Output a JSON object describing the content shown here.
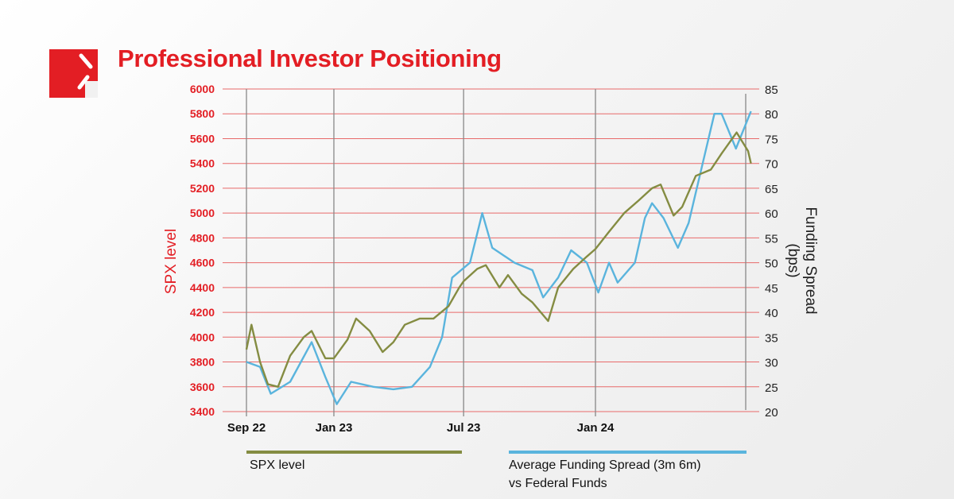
{
  "title": "Professional Investor Positioning",
  "colors": {
    "brand": "#e31e24",
    "spx": "#848c42",
    "funding": "#5ab4dd",
    "grid": "#e86a6a",
    "vline": "#888888"
  },
  "chart_data": {
    "type": "line",
    "title": "Professional Investor Positioning",
    "x_ticks": [
      {
        "date": "2022-09-01",
        "label": "Sep 22"
      },
      {
        "date": "2023-01-01",
        "label": "Jan 23"
      },
      {
        "date": "2023-07-01",
        "label": "Jul 23"
      },
      {
        "date": "2024-01-01",
        "label": "Jan 24"
      }
    ],
    "xlim": [
      "2022-08-25",
      "2024-08-07"
    ],
    "y_left": {
      "label": "SPX level",
      "lim": [
        3400,
        6000
      ],
      "ticks": [
        3400,
        3600,
        3800,
        4000,
        4200,
        4400,
        4600,
        4800,
        5000,
        5200,
        5400,
        5600,
        5800,
        6000
      ]
    },
    "y_right": {
      "label": "Funding Spread (bps)",
      "lim": [
        20,
        85
      ],
      "ticks": [
        20,
        25,
        30,
        35,
        40,
        45,
        50,
        55,
        60,
        65,
        70,
        75,
        80,
        85
      ]
    },
    "grid": "horizontal",
    "legend_position": "bottom",
    "series": [
      {
        "name": "SPX level",
        "axis": "left",
        "points": [
          [
            "2022-09-01",
            3900
          ],
          [
            "2022-09-08",
            4100
          ],
          [
            "2022-09-20",
            3800
          ],
          [
            "2022-10-01",
            3620
          ],
          [
            "2022-10-15",
            3600
          ],
          [
            "2022-11-01",
            3850
          ],
          [
            "2022-11-20",
            4000
          ],
          [
            "2022-12-01",
            4050
          ],
          [
            "2022-12-20",
            3830
          ],
          [
            "2023-01-01",
            3830
          ],
          [
            "2023-01-20",
            3980
          ],
          [
            "2023-02-01",
            4150
          ],
          [
            "2023-02-20",
            4050
          ],
          [
            "2023-03-10",
            3880
          ],
          [
            "2023-03-25",
            3960
          ],
          [
            "2023-04-10",
            4100
          ],
          [
            "2023-05-01",
            4150
          ],
          [
            "2023-05-20",
            4150
          ],
          [
            "2023-06-10",
            4250
          ],
          [
            "2023-06-25",
            4400
          ],
          [
            "2023-07-01",
            4450
          ],
          [
            "2023-07-20",
            4550
          ],
          [
            "2023-08-01",
            4580
          ],
          [
            "2023-08-20",
            4400
          ],
          [
            "2023-09-01",
            4500
          ],
          [
            "2023-09-20",
            4350
          ],
          [
            "2023-10-05",
            4280
          ],
          [
            "2023-10-27",
            4130
          ],
          [
            "2023-11-10",
            4400
          ],
          [
            "2023-12-01",
            4550
          ],
          [
            "2023-12-20",
            4650
          ],
          [
            "2024-01-01",
            4710
          ],
          [
            "2024-01-20",
            4850
          ],
          [
            "2024-02-10",
            5000
          ],
          [
            "2024-03-01",
            5100
          ],
          [
            "2024-03-20",
            5200
          ],
          [
            "2024-04-01",
            5230
          ],
          [
            "2024-04-19",
            4980
          ],
          [
            "2024-05-01",
            5050
          ],
          [
            "2024-05-20",
            5300
          ],
          [
            "2024-06-10",
            5350
          ],
          [
            "2024-06-25",
            5480
          ],
          [
            "2024-07-16",
            5650
          ],
          [
            "2024-08-01",
            5500
          ],
          [
            "2024-08-05",
            5400
          ]
        ]
      },
      {
        "name": "Average Funding Spread (3m 6m) vs Federal Funds",
        "axis": "right",
        "points": [
          [
            "2022-09-01",
            30
          ],
          [
            "2022-09-20",
            29
          ],
          [
            "2022-10-05",
            23.6
          ],
          [
            "2022-11-01",
            26
          ],
          [
            "2022-12-01",
            34
          ],
          [
            "2022-12-20",
            27
          ],
          [
            "2023-01-05",
            21.5
          ],
          [
            "2023-01-25",
            26
          ],
          [
            "2023-02-25",
            25
          ],
          [
            "2023-03-25",
            24.5
          ],
          [
            "2023-04-20",
            25
          ],
          [
            "2023-05-15",
            29
          ],
          [
            "2023-06-01",
            35
          ],
          [
            "2023-06-15",
            47
          ],
          [
            "2023-07-10",
            50
          ],
          [
            "2023-07-27",
            60
          ],
          [
            "2023-08-10",
            53
          ],
          [
            "2023-09-10",
            50
          ],
          [
            "2023-10-05",
            48.5
          ],
          [
            "2023-10-20",
            43
          ],
          [
            "2023-11-10",
            47
          ],
          [
            "2023-11-28",
            52.5
          ],
          [
            "2023-12-20",
            50
          ],
          [
            "2024-01-05",
            44
          ],
          [
            "2024-01-20",
            50
          ],
          [
            "2024-02-01",
            46
          ],
          [
            "2024-02-25",
            50
          ],
          [
            "2024-03-10",
            59
          ],
          [
            "2024-03-20",
            62
          ],
          [
            "2024-04-05",
            59
          ],
          [
            "2024-04-25",
            53
          ],
          [
            "2024-05-10",
            58
          ],
          [
            "2024-05-28",
            69
          ],
          [
            "2024-06-15",
            80
          ],
          [
            "2024-06-25",
            80
          ],
          [
            "2024-07-15",
            73
          ],
          [
            "2024-08-05",
            80.5
          ]
        ]
      }
    ]
  },
  "legend": {
    "spx": "SPX level",
    "funding_line1": "Average Funding Spread (3m 6m)",
    "funding_line2": "vs Federal Funds"
  }
}
